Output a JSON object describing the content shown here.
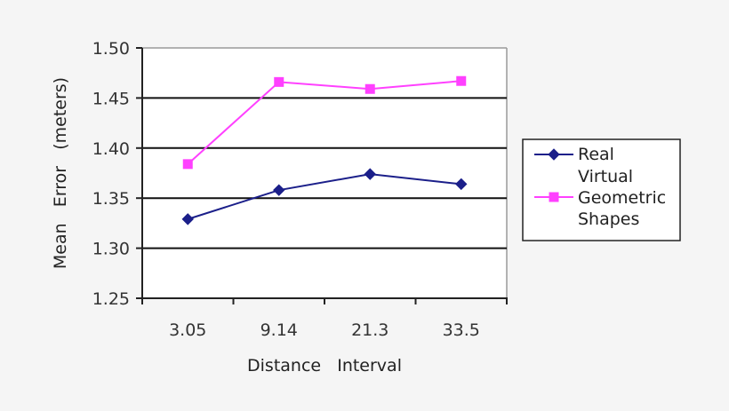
{
  "chart_data": {
    "type": "line",
    "title": "",
    "xlabel": "Distance   Interval",
    "ylabel": "Mean   Error   (meters)",
    "categories": [
      "3.05",
      "9.14",
      "21.3",
      "33.5"
    ],
    "ylim": [
      1.25,
      1.5
    ],
    "yticks": [
      "1.50",
      "1.45",
      "1.40",
      "1.35",
      "1.30",
      "1.25"
    ],
    "grid": true,
    "legend_position": "right",
    "series": [
      {
        "name": "Real",
        "color": "#1b1f8a",
        "marker": "diamond",
        "values": [
          1.329,
          1.358,
          1.374,
          1.364
        ]
      },
      {
        "name": "Virtual Geometric Shapes",
        "color": "#ff40ff",
        "marker": "square",
        "values": [
          1.384,
          1.466,
          1.459,
          1.467
        ]
      }
    ]
  },
  "axes": {
    "x_title": "Distance   Interval",
    "y_title": "Mean   Error   (meters)",
    "x_ticks": [
      "3.05",
      "9.14",
      "21.3",
      "33.5"
    ],
    "y_ticks": [
      "1.50",
      "1.45",
      "1.40",
      "1.35",
      "1.30",
      "1.25"
    ]
  },
  "legend": {
    "entries": [
      {
        "lines": [
          "Real"
        ],
        "color": "#1b1f8a",
        "marker": "diamond"
      },
      {
        "lines": [
          "Virtual",
          "Geometric",
          "Shapes"
        ],
        "color": "#ff40ff",
        "marker": "square"
      }
    ]
  }
}
